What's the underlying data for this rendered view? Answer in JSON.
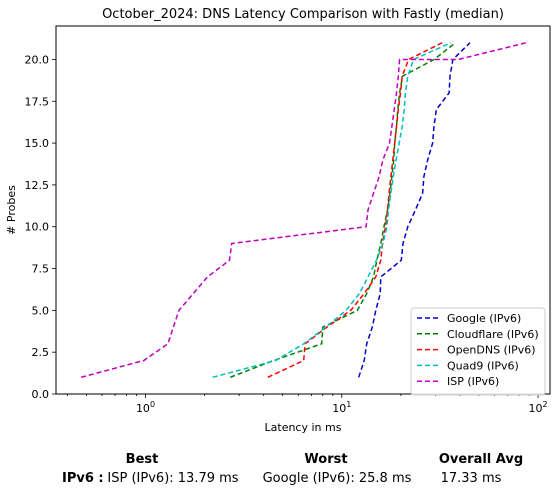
{
  "chart_data": {
    "type": "line",
    "title": "October_2024: DNS Latency Comparison with Fastly (median)",
    "xlabel": "Latency in ms",
    "ylabel": "# Probes",
    "xscale": "log",
    "xlim": [
      0.35,
      115
    ],
    "ylim": [
      0,
      22
    ],
    "x_ticks": [
      1,
      10,
      100
    ],
    "x_tick_labels": [
      "10^0",
      "10^1",
      "10^2"
    ],
    "y_ticks": [
      0.0,
      2.5,
      5.0,
      7.5,
      10.0,
      12.5,
      15.0,
      17.5,
      20.0
    ],
    "y_tick_labels": [
      "0.0",
      "2.5",
      "5.0",
      "7.5",
      "10.0",
      "12.5",
      "15.0",
      "17.5",
      "20.0"
    ],
    "grid": false,
    "legend_position": "lower-right",
    "line_style": "dashed",
    "series": [
      {
        "name": "Google (IPv6)",
        "color": "#0000cc",
        "x": [
          12.2,
          13.0,
          13.4,
          14.3,
          14.9,
          15.7,
          15.8,
          20.1,
          20.5,
          21.7,
          23.7,
          25.8,
          26.2,
          27.4,
          29.0,
          29.5,
          30.3,
          35.2,
          35.6,
          36.8,
          45.0
        ],
        "y": [
          1,
          2,
          3,
          4,
          5,
          6,
          7,
          8,
          9,
          10,
          11,
          12,
          13,
          14,
          15,
          16,
          17,
          18,
          19,
          20,
          21
        ]
      },
      {
        "name": "Cloudflare (IPv6)",
        "color": "#008000",
        "x": [
          2.7,
          4.5,
          7.9,
          8.0,
          12.0,
          13.4,
          14.5,
          15.1,
          15.8,
          16.4,
          17.1,
          17.6,
          18.0,
          18.4,
          18.6,
          19.0,
          19.3,
          19.7,
          20.4,
          29.5,
          38.0
        ],
        "y": [
          1,
          2,
          3,
          4,
          5,
          6,
          7,
          8,
          9,
          10,
          11,
          12,
          13,
          14,
          15,
          16,
          17,
          18,
          19,
          20,
          21
        ]
      },
      {
        "name": "OpenDNS (IPv6)",
        "color": "#ff0000",
        "x": [
          4.2,
          6.4,
          6.5,
          8.4,
          11.1,
          13.0,
          14.9,
          15.8,
          16.1,
          16.7,
          17.1,
          17.4,
          17.8,
          18.2,
          18.6,
          19.0,
          19.4,
          19.9,
          20.3,
          21.9,
          32.5
        ],
        "y": [
          1,
          2,
          3,
          4,
          5,
          6,
          7,
          8,
          9,
          10,
          11,
          12,
          13,
          14,
          15,
          16,
          17,
          18,
          19,
          20,
          21
        ]
      },
      {
        "name": "Quad9 (IPv6)",
        "color": "#00bfbf",
        "x": [
          2.2,
          4.6,
          6.4,
          8.3,
          10.5,
          12.3,
          13.6,
          15.0,
          16.2,
          17.0,
          17.3,
          17.8,
          18.3,
          18.9,
          19.6,
          20.3,
          20.8,
          21.1,
          21.7,
          23.2,
          36.0
        ],
        "y": [
          1,
          2,
          3,
          4,
          5,
          6,
          7,
          8,
          9,
          10,
          11,
          12,
          13,
          14,
          15,
          16,
          17,
          18,
          19,
          20,
          21
        ]
      },
      {
        "name": "ISP (IPv6)",
        "color": "#bf00bf",
        "x": [
          0.47,
          0.98,
          1.3,
          1.48,
          2.07,
          2.68,
          2.75,
          13.3,
          13.6,
          14.5,
          15.5,
          16.2,
          17.5,
          18.0,
          18.5,
          19.0,
          19.4,
          19.7,
          20.7,
          39.2,
          87.0
        ],
        "y": [
          1,
          2,
          3,
          5,
          7,
          8,
          9,
          10,
          11,
          12,
          13,
          14,
          15,
          16,
          17,
          18,
          19,
          20,
          20,
          20,
          21
        ]
      }
    ]
  },
  "summary": {
    "best_header": "Best",
    "worst_header": "Worst",
    "overall_header": "Overall Avg",
    "row_label": "IPv6 :",
    "best_value": "ISP (IPv6): 13.79 ms",
    "worst_value": "Google (IPv6): 25.8 ms",
    "overall_value": "17.33 ms"
  }
}
